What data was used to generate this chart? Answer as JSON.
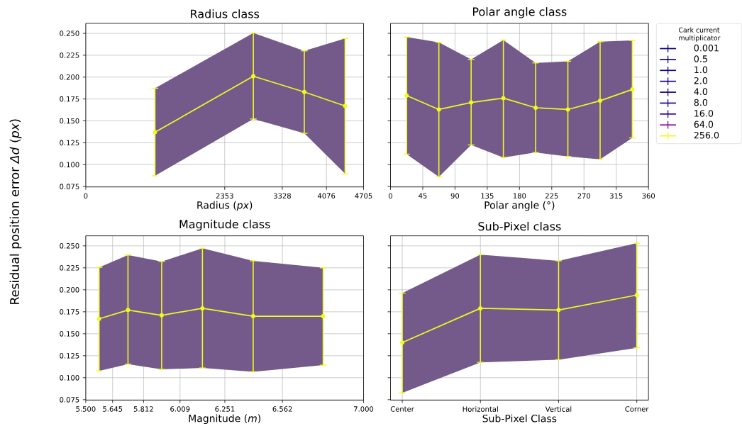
{
  "chart_data": [
    {
      "type": "line",
      "title": "Radius class",
      "xlabel": "Radius (*px*)",
      "ylabel": "Residual position error *Δd* (*px*)",
      "x": [
        1172,
        2838,
        3701,
        4392
      ],
      "xlim": [
        0,
        4705
      ],
      "xticks": [
        0,
        2353,
        3328,
        4076,
        4705
      ],
      "ylim": [
        0.0745,
        0.2614
      ],
      "yticks": [
        0.075,
        {
          "value": 0.1,
          "label": "0.100"
        },
        0.125,
        {
          "value": 0.15,
          "label": "0.150"
        },
        0.175,
        {
          "value": 0.2,
          "label": "0.200"
        },
        0.225,
        {
          "value": 0.25,
          "label": "0.250"
        }
      ],
      "grid": true,
      "marker": "circle",
      "series": [
        {
          "type": "area",
          "color": "#735a8a",
          "values": [
            null,
            null,
            null,
            null
          ],
          "lower": [
            0.0872,
            0.1522,
            0.1358,
            0.0896
          ],
          "upper": [
            0.1873,
            0.2505,
            0.23,
            0.2441
          ]
        },
        {
          "color": "#f0f921",
          "values": [
            0.137,
            0.201,
            0.183,
            0.167
          ],
          "errors": [
            [
              0.0872,
              0.1873
            ],
            [
              0.1522,
              0.2505
            ],
            [
              0.1358,
              0.23
            ],
            [
              0.0896,
              0.2441
            ]
          ]
        }
      ]
    },
    {
      "type": "line",
      "title": "Polar angle class",
      "xlabel": "Polar angle (°)",
      "x": [
        22.5,
        67.5,
        112.5,
        157.5,
        202.5,
        247.5,
        292.5,
        337.5
      ],
      "xlim": [
        0,
        360
      ],
      "xticks": [
        0,
        45,
        90,
        135,
        180,
        225,
        270,
        315,
        360
      ],
      "ylim": [
        0.0745,
        0.2614
      ],
      "yticks": [
        0.075,
        0.1,
        0.125,
        0.15,
        0.175,
        0.2,
        0.225,
        0.25
      ],
      "tick_labels": "x",
      "grid": true,
      "marker": "circle",
      "legend": "top right",
      "legend_title": "Cark current multiplicator",
      "series": [
        {
          "type": "area",
          "color": "#735a8a",
          "values": [
            null,
            null,
            null,
            null,
            null,
            null,
            null,
            null
          ],
          "lower": [
            0.112,
            0.0861,
            0.1225,
            0.1082,
            0.1139,
            0.1093,
            0.106,
            0.1306
          ],
          "upper": [
            0.2457,
            0.2397,
            0.2203,
            0.2424,
            0.2162,
            0.2181,
            0.2405,
            0.2419
          ]
        },
        {
          "name": "0.001",
          "color": "#0d0887",
          "values": [
            null,
            null,
            null,
            null,
            null,
            null,
            null,
            null
          ]
        },
        {
          "name": "0.5",
          "color": "#10078a",
          "values": [
            null,
            null,
            null,
            null,
            null,
            null,
            null,
            null
          ]
        },
        {
          "name": "1.0",
          "color": "#13078c",
          "values": [
            null,
            null,
            null,
            null,
            null,
            null,
            null,
            null
          ]
        },
        {
          "name": "2.0",
          "color": "#170690",
          "values": [
            null,
            null,
            null,
            null,
            null,
            null,
            null,
            null
          ]
        },
        {
          "name": "4.0",
          "color": "#1c0593",
          "values": [
            null,
            null,
            null,
            null,
            null,
            null,
            null,
            null
          ]
        },
        {
          "name": "8.0",
          "color": "#22049a",
          "values": [
            null,
            null,
            null,
            null,
            null,
            null,
            null,
            null
          ]
        },
        {
          "name": "16.0",
          "color": "#2d049f",
          "values": [
            null,
            null,
            null,
            null,
            null,
            null,
            null,
            null
          ]
        },
        {
          "name": "64.0",
          "color": "#8b0aa5",
          "values": [
            null,
            null,
            null,
            null,
            null,
            null,
            null,
            null
          ]
        },
        {
          "name": "256.0",
          "color": "#f0f921",
          "values": [
            0.179,
            0.163,
            0.171,
            0.176,
            0.165,
            0.163,
            0.173,
            0.186
          ],
          "errors": [
            [
              0.112,
              0.2457
            ],
            [
              0.0861,
              0.2397
            ],
            [
              0.1225,
              0.2203
            ],
            [
              0.1082,
              0.2424
            ],
            [
              0.1139,
              0.2162
            ],
            [
              0.1093,
              0.2181
            ],
            [
              0.106,
              0.2405
            ],
            [
              0.1306,
              0.2419
            ]
          ]
        }
      ]
    },
    {
      "type": "line",
      "title": "Magnitude class",
      "xlabel": "Magnitude (*m*)",
      "x": [
        5.572,
        5.728,
        5.91,
        6.13,
        6.404,
        6.782
      ],
      "xlim": [
        5.5,
        7.0
      ],
      "xticks": [
        {
          "value": 5.5,
          "label": "5.500"
        },
        5.645,
        5.812,
        6.009,
        6.251,
        6.562,
        {
          "value": 7.0,
          "label": "7.000"
        }
      ],
      "ylim": [
        0.0745,
        0.2614
      ],
      "yticks": [
        0.075,
        {
          "value": 0.1,
          "label": "0.100"
        },
        0.125,
        {
          "value": 0.15,
          "label": "0.150"
        },
        0.175,
        {
          "value": 0.2,
          "label": "0.200"
        },
        0.225,
        {
          "value": 0.25,
          "label": "0.250"
        }
      ],
      "grid": true,
      "marker": "circle",
      "series": [
        {
          "type": "area",
          "color": "#735a8a",
          "values": [
            null,
            null,
            null,
            null,
            null,
            null
          ],
          "lower": [
            0.1078,
            0.1154,
            0.1095,
            0.1111,
            0.1068,
            0.1143
          ],
          "upper": [
            0.2255,
            0.2395,
            0.2322,
            0.2473,
            0.233,
            0.225
          ]
        },
        {
          "color": "#f0f921",
          "values": [
            0.167,
            0.177,
            0.171,
            0.179,
            0.17,
            0.17
          ],
          "errors": [
            [
              0.1078,
              0.2255
            ],
            [
              0.1154,
              0.2395
            ],
            [
              0.1095,
              0.2322
            ],
            [
              0.1111,
              0.2473
            ],
            [
              0.1068,
              0.233
            ],
            [
              0.1143,
              0.225
            ]
          ]
        }
      ]
    },
    {
      "type": "line",
      "title": "Sub-Pixel class",
      "xlabel": "Sub-Pixel Class",
      "categories": [
        "Center",
        "Horizontal",
        "Vertical",
        "Corner"
      ],
      "ylim": [
        0.0745,
        0.2614
      ],
      "yticks": [
        0.075,
        0.1,
        0.125,
        0.15,
        0.175,
        0.2,
        0.225,
        0.25
      ],
      "tick_labels": "x",
      "grid": true,
      "marker": "circle",
      "series": [
        {
          "type": "area",
          "color": "#735a8a",
          "values": [
            null,
            null,
            null,
            null
          ],
          "lower": [
            0.0828,
            0.1175,
            0.1205,
            0.134
          ],
          "upper": [
            0.1962,
            0.24,
            0.233,
            0.253
          ]
        },
        {
          "color": "#f0f921",
          "values": [
            0.14,
            0.179,
            0.177,
            0.194
          ],
          "errors": [
            [
              0.0828,
              0.1962
            ],
            [
              0.1175,
              0.24
            ],
            [
              0.1205,
              0.233
            ],
            [
              0.134,
              0.253
            ]
          ]
        }
      ]
    }
  ]
}
